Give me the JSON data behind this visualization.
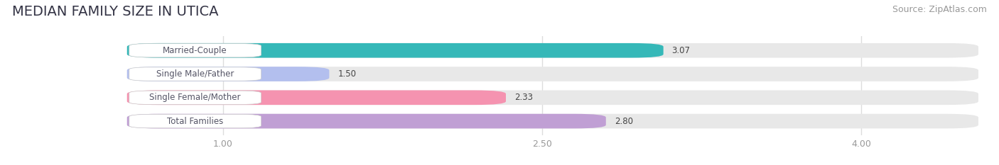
{
  "title": "MEDIAN FAMILY SIZE IN UTICA",
  "source": "Source: ZipAtlas.com",
  "categories": [
    "Married-Couple",
    "Single Male/Father",
    "Single Female/Mother",
    "Total Families"
  ],
  "values": [
    3.07,
    1.5,
    2.33,
    2.8
  ],
  "bar_colors": [
    "#35b8b8",
    "#b3bfee",
    "#f593b0",
    "#c09fd4"
  ],
  "background_color": "#ffffff",
  "bar_bg_color": "#e8e8e8",
  "title_fontsize": 14,
  "source_fontsize": 9,
  "label_fontsize": 8.5,
  "value_fontsize": 8.5,
  "bar_height": 0.62,
  "xlim_min": 0.0,
  "xlim_max": 4.6,
  "xstart": 0.55,
  "xticks": [
    1.0,
    2.5,
    4.0
  ],
  "grid_color": "#dddddd",
  "label_box_color": "#ffffff",
  "text_color": "#555566",
  "value_text_color": "#444444"
}
